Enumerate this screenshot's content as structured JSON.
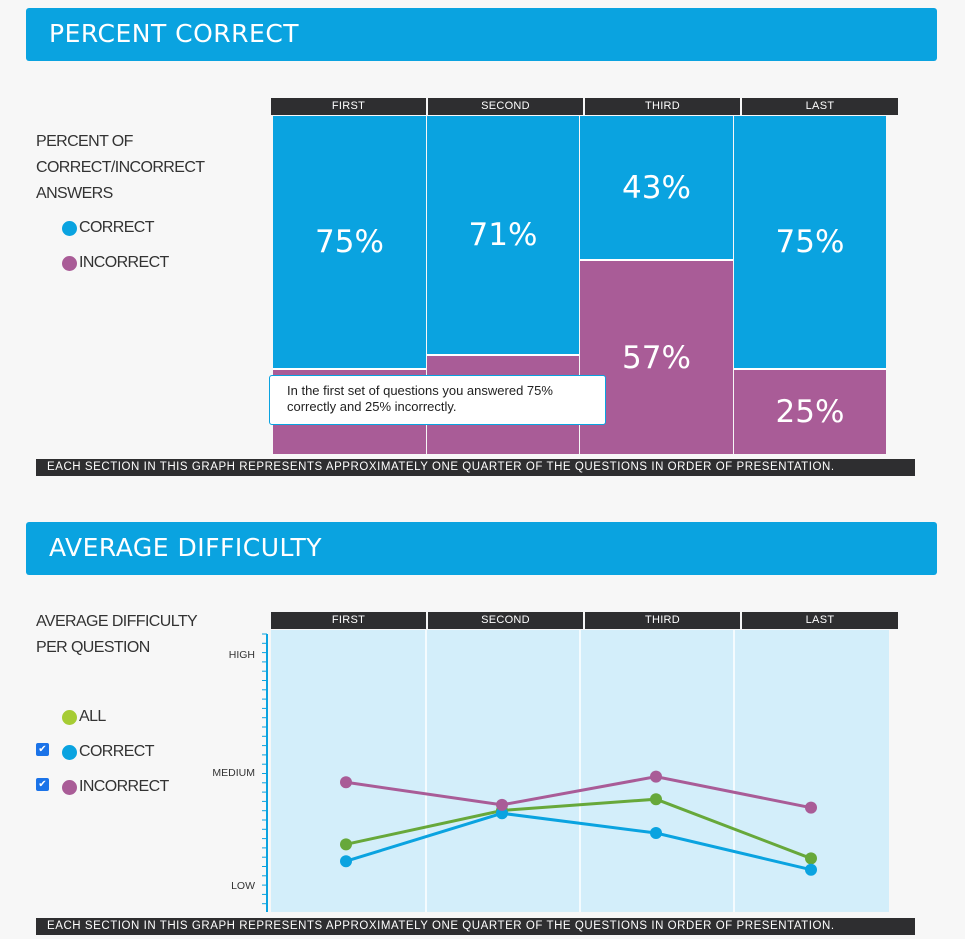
{
  "colors": {
    "correct": "#0aa3e0",
    "incorrect": "#a95c97",
    "all": "#67a83a",
    "header": "#0aa3e0",
    "dark": "#2e2e30",
    "plot_bg": "#d3eefa"
  },
  "section1": {
    "title": "PERCENT CORRECT"
  },
  "section2": {
    "title": "AVERAGE DIFFICULTY"
  },
  "chart_data": [
    {
      "type": "bar",
      "stacked": true,
      "title": "PERCENT OF CORRECT/INCORRECT ANSWERS",
      "categories": [
        "FIRST",
        "SECOND",
        "THIRD",
        "LAST"
      ],
      "series": [
        {
          "name": "CORRECT",
          "values": [
            75,
            71,
            43,
            75
          ],
          "labels": [
            "75%",
            "71%",
            "43%",
            "75%"
          ]
        },
        {
          "name": "INCORRECT",
          "values": [
            25,
            29,
            57,
            25
          ],
          "labels": [
            "",
            "",
            "57%",
            "25%"
          ]
        }
      ],
      "legend": [
        "CORRECT",
        "INCORRECT"
      ],
      "ylim": [
        0,
        100
      ],
      "tooltip": "In the first set of questions you answered 75% correctly and 25% incorrectly.",
      "footnote": "EACH SECTION IN THIS GRAPH REPRESENTS APPROXIMATELY ONE QUARTER OF THE QUESTIONS IN ORDER OF PRESENTATION."
    },
    {
      "type": "line",
      "title": "AVERAGE DIFFICULTY PER QUESTION",
      "categories": [
        "FIRST",
        "SECOND",
        "THIRD",
        "LAST"
      ],
      "yticks": [
        "HIGH",
        "MEDIUM",
        "LOW"
      ],
      "ylim": [
        0,
        100
      ],
      "series": [
        {
          "name": "ALL",
          "checked": null,
          "values": [
            24,
            36,
            40,
            19
          ]
        },
        {
          "name": "CORRECT",
          "checked": true,
          "values": [
            18,
            35,
            28,
            15
          ]
        },
        {
          "name": "INCORRECT",
          "checked": true,
          "values": [
            46,
            38,
            48,
            37
          ]
        }
      ],
      "footnote": "EACH SECTION IN THIS GRAPH REPRESENTS APPROXIMATELY ONE QUARTER OF THE QUESTIONS IN ORDER OF PRESENTATION."
    }
  ],
  "legend1": {
    "title_lines": [
      "PERCENT OF",
      "CORRECT/INCORRECT",
      "ANSWERS"
    ],
    "correct": "CORRECT",
    "incorrect": "INCORRECT"
  },
  "legend2": {
    "title_lines": [
      "AVERAGE DIFFICULTY",
      "PER QUESTION"
    ],
    "all": "ALL",
    "correct": "CORRECT",
    "incorrect": "INCORRECT",
    "checkmark": "✔"
  }
}
